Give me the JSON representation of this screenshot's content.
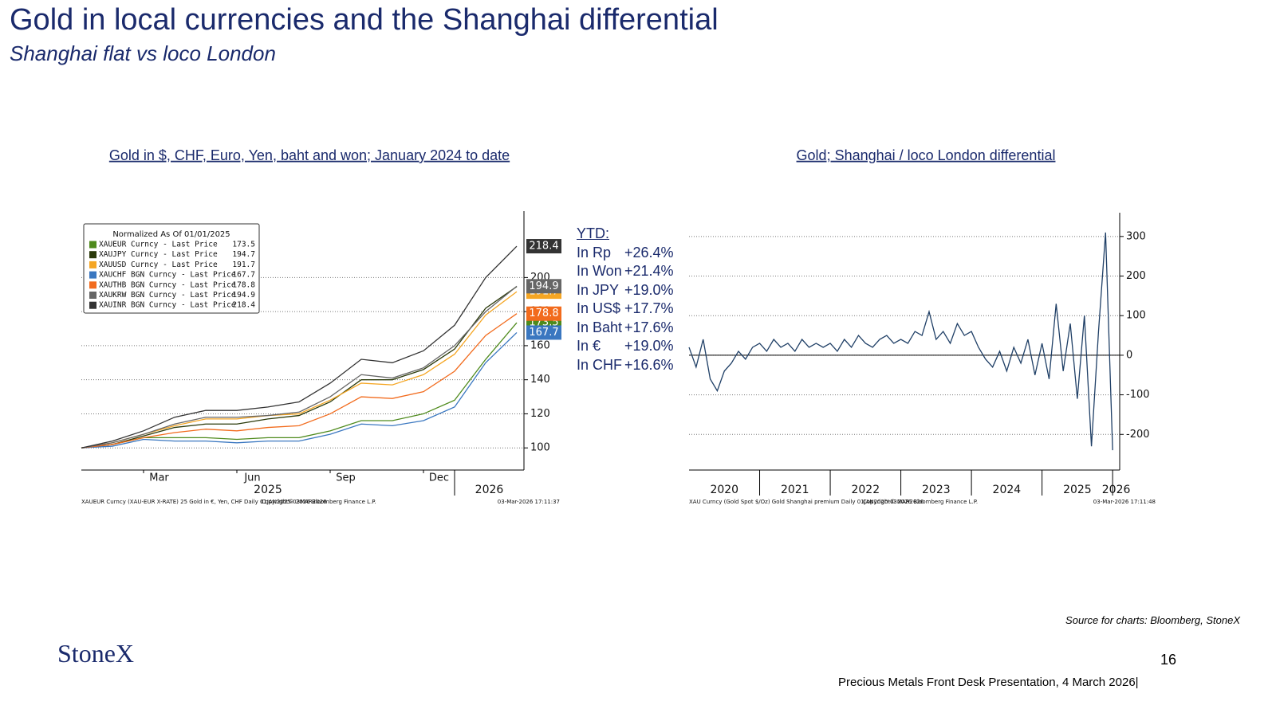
{
  "header": {
    "title": "Gold in local currencies and the Shanghai differential",
    "subtitle": "Shanghai  flat vs loco London"
  },
  "chart_data": [
    {
      "type": "line",
      "title": "Gold in $, CHF, Euro, Yen, baht and won; January 2024 to date",
      "legend_title": "Normalized As Of 01/01/2025",
      "legend": "top-left",
      "grid": true,
      "end_labels": true,
      "x": [
        "2025-01",
        "2025-02",
        "2025-03",
        "2025-04",
        "2025-05",
        "2025-06",
        "2025-07",
        "2025-08",
        "2025-09",
        "2025-10",
        "2025-11",
        "2025-12",
        "2026-01",
        "2026-02",
        "2026-03"
      ],
      "xlim": [
        "2025-01",
        "2026-03"
      ],
      "xticks": [
        {
          "value": "2025-03",
          "label": "Mar"
        },
        {
          "value": "2025-06",
          "label": "Jun"
        },
        {
          "value": "2025-09",
          "label": "Sep"
        },
        {
          "value": "2025-12",
          "label": "Dec"
        }
      ],
      "year_ticks": [
        {
          "value": "2025-01",
          "label": "2025"
        },
        {
          "value": "2026-01",
          "label": "2026"
        }
      ],
      "ylim": [
        87,
        239
      ],
      "yticks": [
        100,
        120,
        140,
        160,
        180,
        200
      ],
      "series": [
        {
          "name": "XAUEUR Curncy - Last Price",
          "color": "#4e8a1c",
          "values": [
            100,
            102,
            106,
            106,
            106,
            105,
            106,
            106,
            110,
            116,
            116,
            120,
            128,
            152,
            173.5
          ]
        },
        {
          "name": "XAUJPY Curncy - Last Price",
          "color": "#2b3a0a",
          "values": [
            100,
            102,
            107,
            112,
            114,
            114,
            117,
            119,
            127,
            140,
            140,
            146,
            158,
            182,
            194.7
          ]
        },
        {
          "name": "XAUUSD Curncy - Last Price",
          "color": "#f5a623",
          "values": [
            100,
            103,
            108,
            113,
            117,
            117,
            119,
            120,
            128,
            138,
            137,
            143,
            155,
            178,
            191.7
          ]
        },
        {
          "name": "XAUCHF BGN Curncy - Last Price",
          "color": "#3a77c0",
          "values": [
            100,
            101,
            105,
            104,
            104,
            103,
            104,
            104,
            108,
            114,
            113,
            116,
            124,
            150,
            167.7
          ]
        },
        {
          "name": "XAUTHB BGN Curncy - Last Price",
          "color": "#f26b1d",
          "values": [
            100,
            102,
            106,
            109,
            111,
            110,
            112,
            113,
            120,
            130,
            129,
            133,
            145,
            166,
            178.8
          ]
        },
        {
          "name": "XAUKRW BGN Curncy - Last Price",
          "color": "#666666",
          "values": [
            100,
            103,
            108,
            114,
            118,
            118,
            119,
            121,
            130,
            143,
            141,
            147,
            160,
            180,
            194.9
          ]
        },
        {
          "name": "XAUINR BGN Curncy - Last Price",
          "color": "#333333",
          "values": [
            100,
            104,
            110,
            118,
            122,
            122,
            124,
            127,
            138,
            152,
            150,
            157,
            172,
            200,
            218.4
          ]
        }
      ],
      "footnotes": [
        "XAUEUR Curncy (XAU-EUR X-RATE) 25 Gold in €, Yen, CHF Daily 01JAN2025-03MAR2026",
        "Copyright© 2026 Bloomberg Finance L.P.",
        "03-Mar-2026 17:11:37"
      ]
    },
    {
      "type": "line",
      "title": "Gold; Shanghai / loco London differential",
      "grid": true,
      "zero_line": true,
      "x": [
        2020,
        2020.1,
        2020.2,
        2020.3,
        2020.4,
        2020.5,
        2020.6,
        2020.7,
        2020.8,
        2020.9,
        2021,
        2021.1,
        2021.2,
        2021.3,
        2021.4,
        2021.5,
        2021.6,
        2021.7,
        2021.8,
        2021.9,
        2022,
        2022.1,
        2022.2,
        2022.3,
        2022.4,
        2022.5,
        2022.6,
        2022.7,
        2022.8,
        2022.9,
        2023,
        2023.1,
        2023.2,
        2023.3,
        2023.4,
        2023.5,
        2023.6,
        2023.7,
        2023.8,
        2023.9,
        2024,
        2024.1,
        2024.2,
        2024.3,
        2024.4,
        2024.5,
        2024.6,
        2024.7,
        2024.8,
        2024.9,
        2025,
        2025.1,
        2025.2,
        2025.3,
        2025.4,
        2025.5,
        2025.6,
        2025.7,
        2025.8,
        2025.9,
        2026
      ],
      "xlim": [
        2020,
        2026.1
      ],
      "year_ticks": [
        2020,
        2021,
        2022,
        2023,
        2024,
        2025,
        2026
      ],
      "ylim": [
        -290,
        360
      ],
      "yticks": [
        -200,
        -100,
        0,
        100,
        200,
        300
      ],
      "series": [
        {
          "name": "XAU Curncy",
          "color": "#1f3f66",
          "values": [
            20,
            -30,
            40,
            -60,
            -90,
            -40,
            -20,
            10,
            -10,
            20,
            30,
            10,
            40,
            20,
            30,
            10,
            40,
            20,
            30,
            20,
            30,
            10,
            40,
            20,
            50,
            30,
            20,
            40,
            50,
            30,
            40,
            30,
            60,
            50,
            110,
            40,
            60,
            30,
            80,
            50,
            60,
            20,
            -10,
            -30,
            10,
            -40,
            20,
            -20,
            40,
            -50,
            30,
            -60,
            130,
            -40,
            80,
            -110,
            100,
            -230,
            60,
            310,
            -240
          ]
        }
      ],
      "footnotes": [
        "XAU Curncy (Gold Spot  $/Oz) Gold Shanghai premium Daily 01JAN2020-03MAR2026",
        "Copyright© 2026 Bloomberg Finance L.P.",
        "03-Mar-2026 17:11:48"
      ]
    }
  ],
  "ytd": {
    "title": "YTD:",
    "rows": [
      [
        "In Rp",
        "+26.4%"
      ],
      [
        "In Won",
        "+21.4%"
      ],
      [
        "In JPY",
        "+19.0%"
      ],
      [
        "In US$",
        "+17.7%"
      ],
      [
        "In Baht",
        "+17.6%"
      ],
      [
        "In €",
        "+19.0%"
      ],
      [
        "In CHF",
        "+16.6%"
      ]
    ]
  },
  "footer": {
    "source": "Source for charts: Bloomberg, StoneX",
    "logo": "StoneX",
    "page": "16",
    "text": "Precious Metals Front Desk Presentation, 4 March 2026|"
  }
}
